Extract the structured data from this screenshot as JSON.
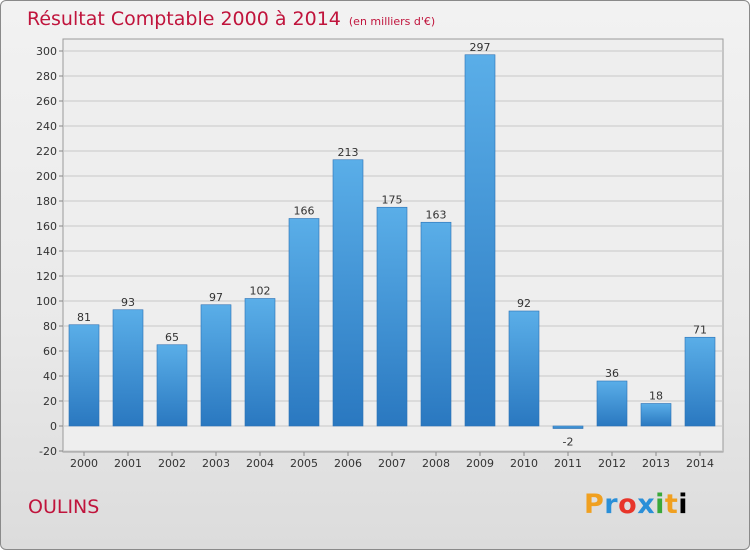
{
  "header": {
    "title": "Résultat Comptable 2000 à 2014",
    "subtitle": "(en milliers d'€)"
  },
  "footer": {
    "commune": "OULINS",
    "logo_text": "Proxiti",
    "logo_colors": [
      "#f0a020",
      "#2a8fd8",
      "#e8352a",
      "#2a8fd8",
      "#3aa83a",
      "#f0a020"
    ]
  },
  "chart_data": {
    "type": "bar",
    "title": "Résultat Comptable 2000 à 2014",
    "subtitle": "(en milliers d'€)",
    "categories": [
      "2000",
      "2001",
      "2002",
      "2003",
      "2004",
      "2005",
      "2006",
      "2007",
      "2008",
      "2009",
      "2010",
      "2011",
      "2012",
      "2013",
      "2014"
    ],
    "values": [
      81,
      93,
      65,
      97,
      102,
      166,
      213,
      175,
      163,
      297,
      92,
      -2,
      36,
      18,
      71
    ],
    "ylim": [
      -20,
      300
    ],
    "yticks": [
      -20,
      0,
      20,
      40,
      60,
      80,
      100,
      120,
      140,
      160,
      180,
      200,
      220,
      240,
      260,
      280,
      300
    ],
    "grid": true,
    "bar_color": "#4a9be0"
  }
}
